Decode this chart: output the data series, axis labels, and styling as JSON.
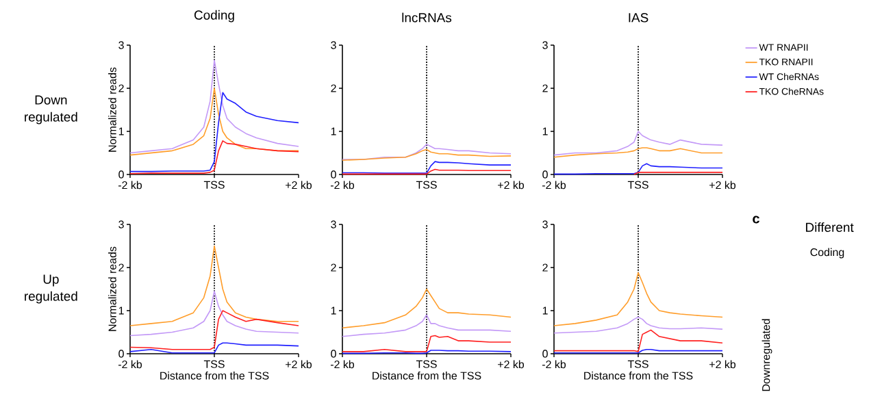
{
  "chart_data": [
    {
      "type": "line",
      "title": "Coding",
      "ylabel": "Normalized reads",
      "annotations": [
        "Down regulated"
      ],
      "xlim": [
        -2,
        2
      ],
      "ylim": [
        0,
        3
      ],
      "yticks": [
        0,
        1,
        2,
        3
      ],
      "xticks": [
        {
          "value": -2,
          "label": "-2 kb"
        },
        {
          "value": 0,
          "label": "TSS"
        },
        {
          "value": 2,
          "label": "+2 kb"
        }
      ],
      "ref_lines": [
        {
          "axis": "x",
          "value": 0,
          "line_style": "dotted",
          "color": "#000000"
        }
      ],
      "x": [
        -2,
        -1.5,
        -1,
        -0.5,
        -0.25,
        -0.1,
        0,
        0.1,
        0.2,
        0.3,
        0.5,
        0.75,
        1,
        1.5,
        2
      ],
      "series": [
        {
          "color": "#c399f7",
          "values": [
            0.5,
            0.55,
            0.6,
            0.8,
            1.1,
            1.7,
            2.65,
            2.1,
            1.6,
            1.3,
            1.1,
            0.95,
            0.85,
            0.72,
            0.65
          ]
        },
        {
          "color": "#ff9d2a",
          "values": [
            0.45,
            0.5,
            0.55,
            0.7,
            0.9,
            1.3,
            2.0,
            1.4,
            1.0,
            0.85,
            0.7,
            0.6,
            0.6,
            0.55,
            0.55
          ]
        },
        {
          "color": "#1f1fff",
          "values": [
            0.07,
            0.07,
            0.08,
            0.08,
            0.08,
            0.1,
            0.3,
            1.2,
            1.9,
            1.75,
            1.65,
            1.45,
            1.35,
            1.25,
            1.2
          ]
        },
        {
          "color": "#ff1f1f",
          "values": [
            0.02,
            0.03,
            0.03,
            0.03,
            0.03,
            0.05,
            0.1,
            0.55,
            0.78,
            0.72,
            0.7,
            0.65,
            0.6,
            0.55,
            0.53
          ]
        }
      ]
    },
    {
      "type": "line",
      "title": "lncRNAs",
      "xlim": [
        -2,
        2
      ],
      "ylim": [
        0,
        3
      ],
      "yticks": [
        0,
        1,
        2,
        3
      ],
      "xticks": [
        {
          "value": -2,
          "label": "-2 kb"
        },
        {
          "value": 0,
          "label": "TSS"
        },
        {
          "value": 2,
          "label": "+2 kb"
        }
      ],
      "ref_lines": [
        {
          "axis": "x",
          "value": 0,
          "line_style": "dotted",
          "color": "#000000"
        }
      ],
      "x": [
        -2,
        -1.5,
        -1,
        -0.5,
        -0.25,
        -0.1,
        0,
        0.1,
        0.2,
        0.3,
        0.5,
        0.75,
        1,
        1.5,
        2
      ],
      "series": [
        {
          "color": "#c399f7",
          "values": [
            0.35,
            0.35,
            0.4,
            0.4,
            0.5,
            0.6,
            0.7,
            0.65,
            0.6,
            0.6,
            0.58,
            0.55,
            0.55,
            0.5,
            0.48
          ]
        },
        {
          "color": "#ff9d2a",
          "values": [
            0.33,
            0.35,
            0.38,
            0.4,
            0.48,
            0.55,
            0.58,
            0.52,
            0.5,
            0.48,
            0.48,
            0.45,
            0.45,
            0.42,
            0.43
          ]
        },
        {
          "color": "#1f1fff",
          "values": [
            0.04,
            0.04,
            0.03,
            0.03,
            0.03,
            0.03,
            0.03,
            0.2,
            0.3,
            0.28,
            0.28,
            0.27,
            0.25,
            0.22,
            0.22
          ]
        },
        {
          "color": "#ff1f1f",
          "values": [
            0.01,
            0.01,
            0.01,
            0.01,
            0.01,
            0.01,
            0.01,
            0.08,
            0.12,
            0.1,
            0.1,
            0.1,
            0.09,
            0.09,
            0.09
          ]
        }
      ]
    },
    {
      "type": "line",
      "title": "IAS",
      "legend": "right",
      "xlim": [
        -2,
        2
      ],
      "ylim": [
        0,
        3
      ],
      "yticks": [
        0,
        1,
        2,
        3
      ],
      "xticks": [
        {
          "value": -2,
          "label": "-2 kb"
        },
        {
          "value": 0,
          "label": "TSS"
        },
        {
          "value": 2,
          "label": "+2 kb"
        }
      ],
      "ref_lines": [
        {
          "axis": "x",
          "value": 0,
          "line_style": "dotted",
          "color": "#000000"
        }
      ],
      "x": [
        -2,
        -1.5,
        -1,
        -0.5,
        -0.25,
        -0.1,
        0,
        0.1,
        0.2,
        0.3,
        0.5,
        0.75,
        1,
        1.5,
        2
      ],
      "series": [
        {
          "name": "WT RNAPII",
          "color": "#c399f7",
          "values": [
            0.45,
            0.5,
            0.5,
            0.55,
            0.65,
            0.75,
            1.0,
            0.9,
            0.85,
            0.8,
            0.75,
            0.7,
            0.8,
            0.7,
            0.68
          ]
        },
        {
          "name": "TKO RNAPII",
          "color": "#ff9d2a",
          "values": [
            0.4,
            0.45,
            0.48,
            0.5,
            0.52,
            0.55,
            0.6,
            0.62,
            0.62,
            0.6,
            0.55,
            0.55,
            0.6,
            0.5,
            0.5
          ]
        },
        {
          "name": "WT CheRNAs",
          "color": "#1f1fff",
          "values": [
            0.01,
            0.01,
            0.02,
            0.02,
            0.02,
            0.02,
            0.05,
            0.2,
            0.25,
            0.2,
            0.18,
            0.18,
            0.17,
            0.15,
            0.15
          ]
        },
        {
          "name": "TKO CheRNAs",
          "color": "#ff1f1f",
          "values": [
            null,
            null,
            null,
            null,
            null,
            0.0,
            0.05,
            0.05,
            0.05,
            0.05,
            0.05,
            0.05,
            0.05,
            0.05,
            0.05
          ]
        }
      ]
    },
    {
      "type": "line",
      "xlabel": "Distance from the TSS",
      "ylabel": "Normalized reads",
      "annotations": [
        "Up regulated"
      ],
      "xlim": [
        -2,
        2
      ],
      "ylim": [
        0,
        3
      ],
      "yticks": [
        0,
        1,
        2,
        3
      ],
      "xticks": [
        {
          "value": -2,
          "label": "-2 kb"
        },
        {
          "value": 0,
          "label": "TSS"
        },
        {
          "value": 2,
          "label": "+2 kb"
        }
      ],
      "ref_lines": [
        {
          "axis": "x",
          "value": 0,
          "line_style": "dotted",
          "color": "#000000"
        }
      ],
      "x": [
        -2,
        -1.5,
        -1,
        -0.5,
        -0.25,
        -0.1,
        0,
        0.1,
        0.2,
        0.3,
        0.5,
        0.75,
        1,
        1.5,
        2
      ],
      "series": [
        {
          "color": "#c399f7",
          "values": [
            0.42,
            0.45,
            0.5,
            0.6,
            0.75,
            1.0,
            1.45,
            1.1,
            0.9,
            0.75,
            0.65,
            0.57,
            0.52,
            0.5,
            0.48
          ]
        },
        {
          "color": "#ff9d2a",
          "values": [
            0.65,
            0.7,
            0.75,
            0.95,
            1.3,
            1.8,
            2.5,
            2.0,
            1.5,
            1.2,
            0.95,
            0.85,
            0.8,
            0.75,
            0.75
          ]
        },
        {
          "color": "#1f1fff",
          "values": [
            0.05,
            0.1,
            0.02,
            0.02,
            0.02,
            0.02,
            0.02,
            0.2,
            0.25,
            0.25,
            0.23,
            0.2,
            0.2,
            0.2,
            0.18
          ]
        },
        {
          "color": "#ff1f1f",
          "values": [
            0.15,
            0.14,
            0.1,
            0.1,
            0.1,
            0.1,
            0.15,
            0.8,
            1.0,
            0.95,
            0.85,
            0.75,
            0.8,
            0.72,
            0.65
          ]
        }
      ]
    },
    {
      "type": "line",
      "xlabel": "Distance from the TSS",
      "xlim": [
        -2,
        2
      ],
      "ylim": [
        0,
        3
      ],
      "yticks": [
        0,
        1,
        2,
        3
      ],
      "xticks": [
        {
          "value": -2,
          "label": "-2 kb"
        },
        {
          "value": 0,
          "label": "TSS"
        },
        {
          "value": 2,
          "label": "+2 kb"
        }
      ],
      "ref_lines": [
        {
          "axis": "x",
          "value": 0,
          "line_style": "dotted",
          "color": "#000000"
        }
      ],
      "x": [
        -2,
        -1.5,
        -1,
        -0.5,
        -0.25,
        -0.1,
        0,
        0.1,
        0.2,
        0.3,
        0.5,
        0.75,
        1,
        1.5,
        2
      ],
      "series": [
        {
          "color": "#c399f7",
          "values": [
            0.4,
            0.45,
            0.48,
            0.55,
            0.65,
            0.75,
            0.9,
            0.7,
            0.7,
            0.65,
            0.6,
            0.55,
            0.55,
            0.55,
            0.52
          ]
        },
        {
          "color": "#ff9d2a",
          "values": [
            0.6,
            0.65,
            0.72,
            0.9,
            1.1,
            1.3,
            1.5,
            1.35,
            1.2,
            1.05,
            0.95,
            0.95,
            0.92,
            0.9,
            0.85
          ]
        },
        {
          "color": "#1f1fff",
          "values": [
            0.01,
            0.01,
            0.02,
            0.02,
            0.01,
            0.01,
            0.02,
            0.08,
            0.08,
            0.08,
            0.07,
            0.07,
            0.06,
            0.06,
            0.05
          ]
        },
        {
          "color": "#ff1f1f",
          "values": [
            0.05,
            0.05,
            0.1,
            0.05,
            0.05,
            0.05,
            0.05,
            0.4,
            0.42,
            0.38,
            0.4,
            0.3,
            0.3,
            0.27,
            0.27
          ]
        }
      ]
    },
    {
      "type": "line",
      "xlabel": "Distance from the TSS",
      "xlim": [
        -2,
        2
      ],
      "ylim": [
        0,
        3
      ],
      "yticks": [
        0,
        1,
        2,
        3
      ],
      "xticks": [
        {
          "value": -2,
          "label": "-2 kb"
        },
        {
          "value": 0,
          "label": "TSS"
        },
        {
          "value": 2,
          "label": "+2 kb"
        }
      ],
      "ref_lines": [
        {
          "axis": "x",
          "value": 0,
          "line_style": "dotted",
          "color": "#000000"
        }
      ],
      "x": [
        -2,
        -1.5,
        -1,
        -0.5,
        -0.25,
        -0.1,
        0,
        0.1,
        0.2,
        0.3,
        0.5,
        0.75,
        1,
        1.5,
        2
      ],
      "series": [
        {
          "color": "#c399f7",
          "values": [
            0.48,
            0.5,
            0.52,
            0.6,
            0.7,
            0.8,
            0.85,
            0.8,
            0.7,
            0.65,
            0.6,
            0.58,
            0.58,
            0.6,
            0.57
          ]
        },
        {
          "color": "#ff9d2a",
          "values": [
            0.65,
            0.7,
            0.78,
            0.9,
            1.2,
            1.5,
            1.88,
            1.65,
            1.4,
            1.2,
            1.0,
            0.95,
            0.92,
            0.88,
            0.85
          ]
        },
        {
          "color": "#1f1fff",
          "values": [
            0.02,
            0.02,
            0.02,
            0.02,
            0.02,
            0.02,
            0.02,
            0.08,
            0.1,
            0.1,
            0.07,
            0.07,
            0.07,
            0.07,
            0.07
          ]
        },
        {
          "color": "#ff1f1f",
          "values": [
            0.07,
            0.07,
            0.07,
            0.07,
            0.07,
            0.07,
            0.05,
            0.45,
            0.5,
            0.55,
            0.4,
            0.35,
            0.3,
            0.3,
            0.25
          ]
        }
      ]
    },
    {
      "type": "other",
      "title": "Different",
      "annotations": [
        "c",
        "Coding",
        "Downregulated"
      ]
    }
  ]
}
